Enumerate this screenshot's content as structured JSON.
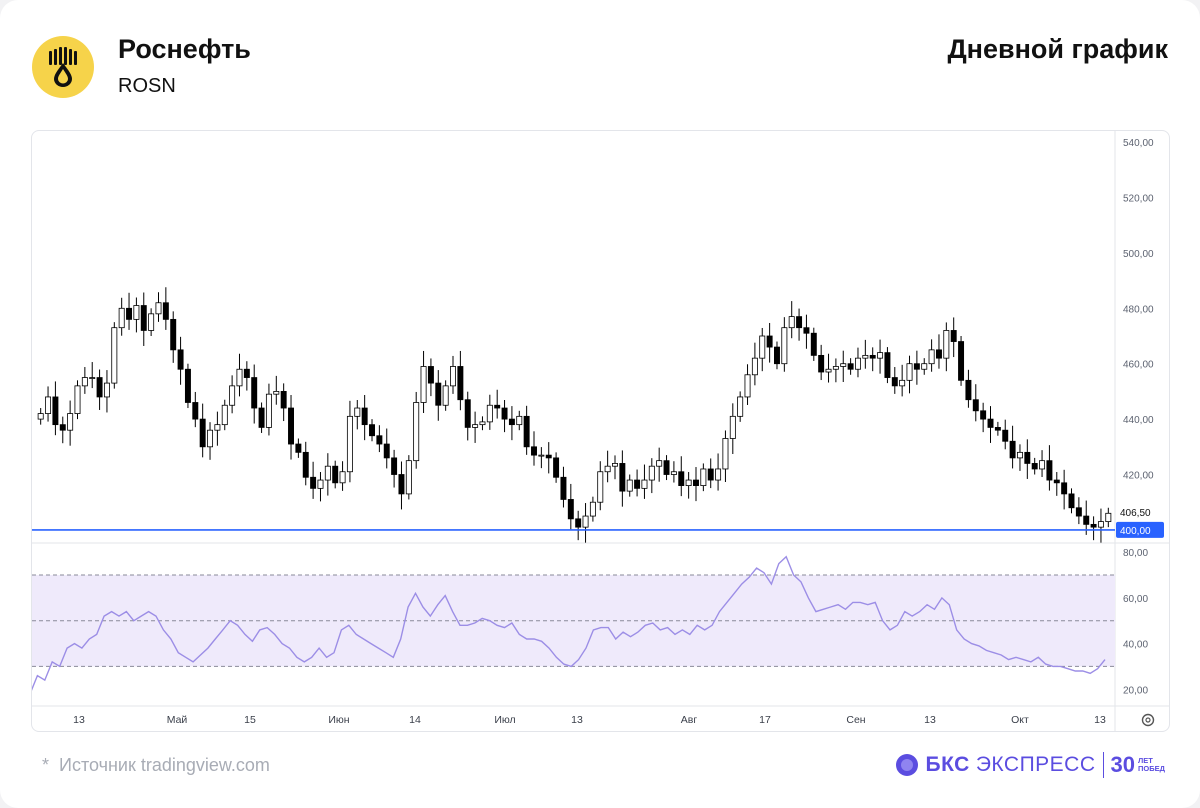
{
  "header": {
    "company": "Роснефть",
    "ticker": "ROSN",
    "period": "Дневной график"
  },
  "footer": {
    "source_star": "*",
    "source": "Источник tradingview.com",
    "brand_bold": "БКС",
    "brand_regular": "ЭКСПРЕСС",
    "brand_years": "30",
    "brand_years_caption": "ЛЕТ ПОБЕД"
  },
  "colors": {
    "support_line": "#2962ff",
    "rsi_line": "#9c8ee6",
    "rsi_band": "#efeafb",
    "candle_up_fill": "#ffffff",
    "candle_down_fill": "#000000"
  },
  "chart_data": [
    {
      "type": "candlestick",
      "title": "",
      "ylim": [
        396,
        544
      ],
      "y_ticks": [
        "540,00",
        "520,00",
        "500,00",
        "480,00",
        "460,00",
        "440,00",
        "420,00"
      ],
      "last_price_label": "406,50",
      "support_level": 400,
      "support_label": "400,00",
      "x_ticks": [
        "13",
        "Май",
        "15",
        "Июн",
        "14",
        "Июл",
        "13",
        "Авг",
        "17",
        "Сен",
        "13",
        "Окт",
        "13"
      ],
      "close": [
        442,
        448,
        438,
        436,
        442,
        452,
        455,
        455,
        448,
        453,
        473,
        480,
        476,
        481,
        472,
        478,
        482,
        476,
        465,
        458,
        446,
        440,
        430,
        436,
        438,
        445,
        452,
        458,
        455,
        444,
        437,
        449,
        450,
        444,
        431,
        428,
        419,
        415,
        418,
        423,
        417,
        421,
        441,
        444,
        438,
        434,
        431,
        426,
        420,
        413,
        425,
        446,
        459,
        453,
        445,
        452,
        459,
        447,
        437,
        438,
        439,
        445,
        444,
        440,
        438,
        441,
        430,
        427,
        427,
        426,
        419,
        411,
        404,
        401,
        405,
        410,
        421,
        423,
        424,
        414,
        418,
        415,
        418,
        423,
        425,
        420,
        421,
        416,
        418,
        416,
        422,
        418,
        422,
        433,
        441,
        448,
        456,
        462,
        470,
        466,
        460,
        473,
        477,
        473,
        471,
        463,
        457,
        458,
        459,
        460,
        458,
        462,
        463,
        462,
        464,
        455,
        452,
        454,
        460,
        458,
        460,
        465,
        462,
        472,
        468,
        454,
        447,
        443,
        440,
        437,
        436,
        432,
        426,
        428,
        424,
        422,
        425,
        418,
        417,
        413,
        408,
        405,
        402,
        401,
        403,
        406
      ]
    },
    {
      "type": "line",
      "title": "",
      "ylim": [
        14,
        84
      ],
      "y_ticks": [
        "80,00",
        "60,00",
        "40,00",
        "20,00"
      ],
      "bands": [
        70,
        50,
        30
      ],
      "values": [
        18,
        26,
        24,
        32,
        30,
        38,
        40,
        38,
        42,
        44,
        52,
        54,
        52,
        54,
        50,
        52,
        54,
        52,
        46,
        42,
        36,
        34,
        32,
        35,
        38,
        42,
        46,
        50,
        48,
        44,
        41,
        46,
        47,
        44,
        40,
        38,
        34,
        32,
        34,
        38,
        34,
        36,
        46,
        48,
        44,
        42,
        40,
        38,
        36,
        34,
        42,
        56,
        62,
        56,
        52,
        57,
        61,
        54,
        48,
        48,
        49,
        51,
        50,
        48,
        47,
        49,
        44,
        42,
        42,
        41,
        38,
        34,
        31,
        30,
        33,
        38,
        46,
        47,
        47,
        42,
        45,
        43,
        45,
        48,
        49,
        46,
        47,
        44,
        46,
        44,
        48,
        46,
        48,
        54,
        58,
        62,
        66,
        69,
        73,
        71,
        66,
        75,
        78,
        70,
        67,
        60,
        54,
        55,
        56,
        57,
        55,
        58,
        58,
        57,
        58,
        50,
        46,
        48,
        54,
        52,
        54,
        57,
        55,
        60,
        57,
        46,
        42,
        40,
        39,
        37,
        36,
        35,
        33,
        34,
        33,
        32,
        34,
        31,
        30,
        30,
        29,
        28,
        28,
        27,
        29,
        33
      ]
    }
  ]
}
